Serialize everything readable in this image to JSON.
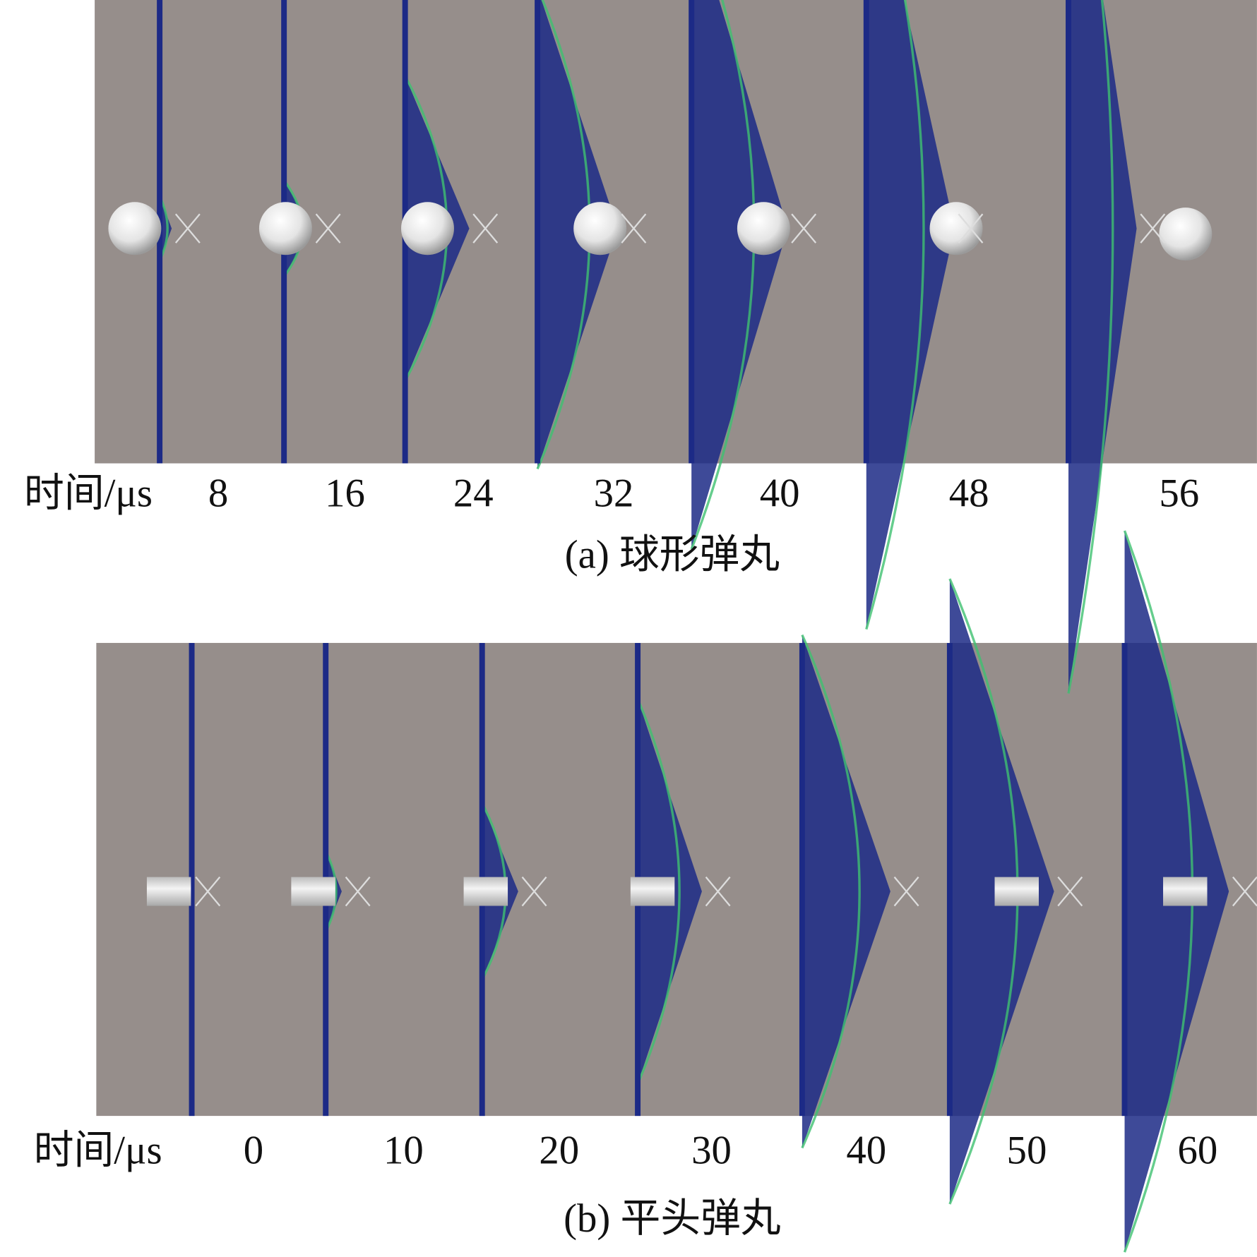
{
  "panel_a": {
    "time_label": "时间/μs",
    "times": [
      8,
      16,
      24,
      32,
      40,
      48,
      56
    ],
    "caption": "(a) 球形弹丸"
  },
  "panel_b": {
    "time_label": "时间/μs",
    "times": [
      0,
      10,
      20,
      30,
      40,
      50,
      60
    ],
    "caption": "(b) 平头弹丸"
  }
}
